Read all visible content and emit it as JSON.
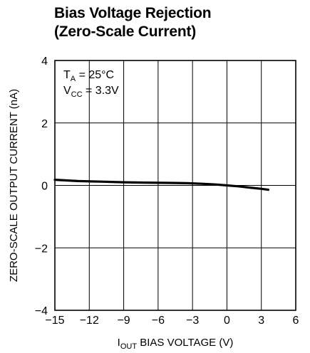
{
  "chart_data": {
    "type": "line",
    "title_lines": [
      "Bias Voltage Rejection",
      "(Zero-Scale Current)"
    ],
    "xlabel_main": "I",
    "xlabel_sub": "OUT",
    "xlabel_rest": " BIAS VOLTAGE (V)",
    "ylabel": "ZERO-SCALE OUTPUT CURRENT (nA)",
    "xlim": [
      -15,
      6
    ],
    "ylim": [
      -4,
      4
    ],
    "xticks": [
      -15,
      -12,
      -9,
      -6,
      -3,
      0,
      3,
      6
    ],
    "yticks": [
      -4,
      -2,
      0,
      2,
      4
    ],
    "xtick_labels": [
      "−15",
      "−12",
      "−9",
      "−6",
      "−3",
      "0",
      "3",
      "6"
    ],
    "ytick_labels": [
      "−4",
      "−2",
      "0",
      "2",
      "4"
    ],
    "grid": true,
    "annotations": [
      {
        "main": "T",
        "sub": "A",
        "rest": " = 25°C"
      },
      {
        "main": "V",
        "sub": "CC",
        "rest": " = 3.3V"
      }
    ],
    "series": [
      {
        "x": [
          -15,
          -13,
          -11,
          -9,
          -7,
          -5,
          -3.5,
          -2,
          -1,
          0,
          1,
          2,
          3,
          3.6
        ],
        "y": [
          0.18,
          0.14,
          0.12,
          0.1,
          0.09,
          0.08,
          0.07,
          0.05,
          0.03,
          0.0,
          -0.03,
          -0.07,
          -0.11,
          -0.14
        ]
      }
    ]
  }
}
